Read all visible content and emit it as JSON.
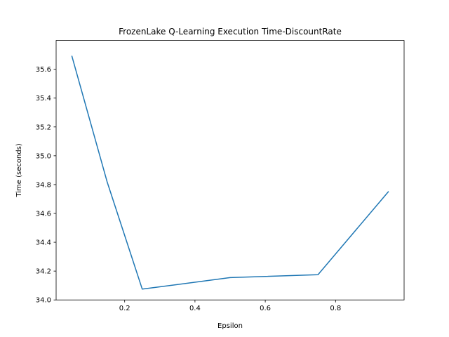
{
  "chart_data": {
    "type": "line",
    "title": "FrozenLake Q-Learning Execution Time-DiscountRate",
    "xlabel": "Epsilon",
    "ylabel": "Time (seconds)",
    "xlim": [
      0.005,
      0.995
    ],
    "ylim": [
      34.0,
      35.8
    ],
    "xticks": [
      0.2,
      0.4,
      0.6,
      0.8
    ],
    "xtick_labels": [
      "0.2",
      "0.4",
      "0.6",
      "0.8"
    ],
    "yticks": [
      34.0,
      34.2,
      34.4,
      34.6,
      34.8,
      35.0,
      35.2,
      35.4,
      35.6
    ],
    "ytick_labels": [
      "34.0",
      "34.2",
      "34.4",
      "34.6",
      "34.8",
      "35.0",
      "35.2",
      "35.4",
      "35.6"
    ],
    "grid": false,
    "legend": "none",
    "series": [
      {
        "color": "#1f77b4",
        "x": [
          0.05,
          0.15,
          0.25,
          0.5,
          0.75,
          0.95
        ],
        "y": [
          35.69,
          34.82,
          34.075,
          34.155,
          34.175,
          34.75
        ]
      }
    ]
  }
}
